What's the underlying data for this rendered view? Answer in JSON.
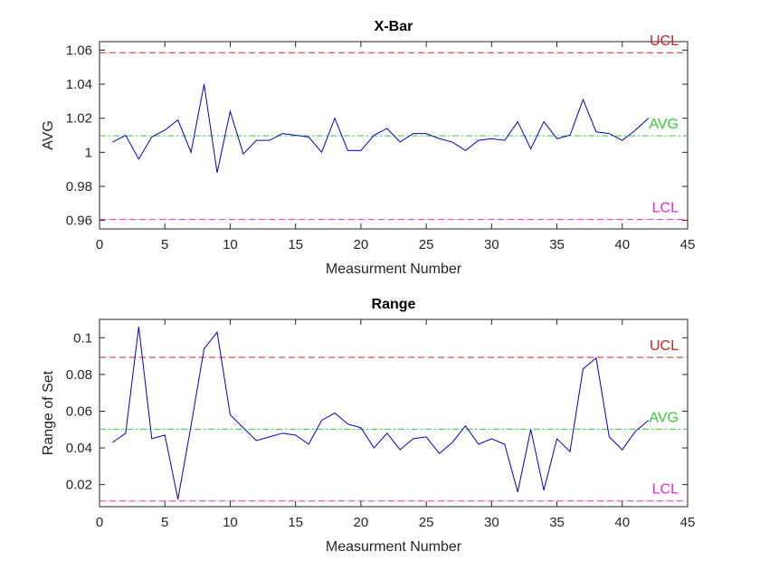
{
  "chart_data": [
    {
      "type": "line",
      "title": "X-Bar",
      "xlabel": "Measurment Number",
      "ylabel": "AVG",
      "xlim": [
        0,
        45
      ],
      "ylim": [
        0.955,
        1.065
      ],
      "xticks": [
        0,
        5,
        10,
        15,
        20,
        25,
        30,
        35,
        40,
        45
      ],
      "xtick_labels": [
        "0",
        "5",
        "10",
        "15",
        "20",
        "25",
        "30",
        "35",
        "40",
        "45"
      ],
      "yticks": [
        0.96,
        0.98,
        1.0,
        1.02,
        1.04,
        1.06
      ],
      "ytick_labels": [
        "0.96",
        "0.98",
        "1",
        "1.02",
        "1.04",
        "1.06"
      ],
      "grid": false,
      "x": [
        1,
        2,
        3,
        4,
        5,
        6,
        7,
        8,
        9,
        10,
        11,
        12,
        13,
        14,
        15,
        16,
        17,
        18,
        19,
        20,
        21,
        22,
        23,
        24,
        25,
        26,
        27,
        28,
        29,
        30,
        31,
        32,
        33,
        34,
        35,
        36,
        37,
        38,
        39,
        40,
        41,
        42
      ],
      "series": [
        {
          "color": "#0000cc",
          "values": [
            1.006,
            1.01,
            0.996,
            1.009,
            1.013,
            1.019,
            1.0,
            1.04,
            0.988,
            1.024,
            0.999,
            1.007,
            1.007,
            1.011,
            1.01,
            1.009,
            1.0,
            1.02,
            1.001,
            1.001,
            1.01,
            1.014,
            1.006,
            1.011,
            1.011,
            1.008,
            1.006,
            1.001,
            1.007,
            1.008,
            1.007,
            1.018,
            1.002,
            1.018,
            1.008,
            1.01,
            1.031,
            1.012,
            1.011,
            1.007,
            1.013,
            1.02
          ]
        }
      ],
      "reference_lines": [
        {
          "label": "UCL",
          "value": 1.0585,
          "color": "#cc2222",
          "style": "dashed"
        },
        {
          "label": "AVG",
          "value": 1.0097,
          "color": "#33cc33",
          "style": "dashdot"
        },
        {
          "label": "LCL",
          "value": 0.9605,
          "color": "#ee22ee",
          "style": "dashed"
        }
      ]
    },
    {
      "type": "line",
      "title": "Range",
      "xlabel": "Measurment Number",
      "ylabel": "Range of Set",
      "xlim": [
        0,
        45
      ],
      "ylim": [
        0.008,
        0.11
      ],
      "xticks": [
        0,
        5,
        10,
        15,
        20,
        25,
        30,
        35,
        40,
        45
      ],
      "xtick_labels": [
        "0",
        "5",
        "10",
        "15",
        "20",
        "25",
        "30",
        "35",
        "40",
        "45"
      ],
      "yticks": [
        0.02,
        0.04,
        0.06,
        0.08,
        0.1
      ],
      "ytick_labels": [
        "0.02",
        "0.04",
        "0.06",
        "0.08",
        "0.1"
      ],
      "grid": false,
      "x": [
        1,
        2,
        3,
        4,
        5,
        6,
        7,
        8,
        9,
        10,
        11,
        12,
        13,
        14,
        15,
        16,
        17,
        18,
        19,
        20,
        21,
        22,
        23,
        24,
        25,
        26,
        27,
        28,
        29,
        30,
        31,
        32,
        33,
        34,
        35,
        36,
        37,
        38,
        39,
        40,
        41,
        42
      ],
      "series": [
        {
          "color": "#0000cc",
          "values": [
            0.043,
            0.048,
            0.106,
            0.045,
            0.047,
            0.012,
            0.052,
            0.094,
            0.103,
            0.058,
            0.051,
            0.044,
            0.046,
            0.048,
            0.047,
            0.042,
            0.055,
            0.059,
            0.053,
            0.051,
            0.04,
            0.048,
            0.039,
            0.045,
            0.046,
            0.037,
            0.043,
            0.052,
            0.042,
            0.045,
            0.042,
            0.016,
            0.05,
            0.017,
            0.045,
            0.038,
            0.083,
            0.089,
            0.046,
            0.039,
            0.049,
            0.055
          ]
        }
      ],
      "reference_lines": [
        {
          "label": "UCL",
          "value": 0.0893,
          "color": "#cc2222",
          "style": "dashed"
        },
        {
          "label": "AVG",
          "value": 0.0502,
          "color": "#33cc33",
          "style": "dashdot"
        },
        {
          "label": "LCL",
          "value": 0.0111,
          "color": "#ee22ee",
          "style": "dashed"
        }
      ]
    }
  ]
}
